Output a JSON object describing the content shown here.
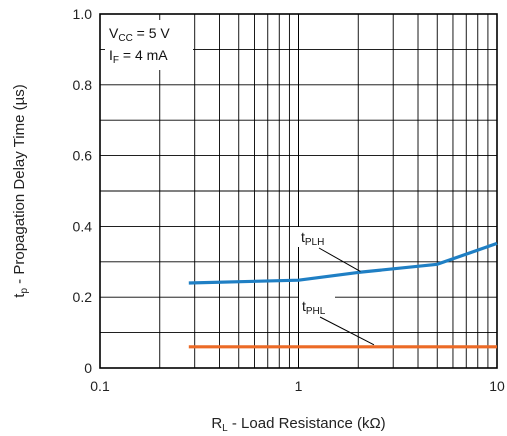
{
  "chart_data": {
    "type": "line",
    "xlabel": {
      "main": "R",
      "sub": "L",
      "rest": " - Load Resistance (kΩ)"
    },
    "ylabel": {
      "main": "t",
      "sub": "p",
      "rest": " - Propagation Delay Time (µs)"
    },
    "xscale": "log",
    "xlim": [
      0.1,
      10
    ],
    "ylim": [
      0,
      1.0
    ],
    "xticks": [
      {
        "value": 0.1,
        "label": "0.1"
      },
      {
        "value": 1,
        "label": "1"
      },
      {
        "value": 10,
        "label": "10"
      }
    ],
    "yticks": [
      {
        "value": 0,
        "label": "0"
      },
      {
        "value": 0.2,
        "label": "0.2"
      },
      {
        "value": 0.4,
        "label": "0.4"
      },
      {
        "value": 0.6,
        "label": "0.6"
      },
      {
        "value": 0.8,
        "label": "0.8"
      },
      {
        "value": 1.0,
        "label": "1.0"
      }
    ],
    "grid": true,
    "conditions": [
      {
        "main": "V",
        "sub": "CC",
        "rest": " = 5 V"
      },
      {
        "main": "I",
        "sub": "F",
        "rest": " = 4 mA"
      }
    ],
    "series": [
      {
        "label_main": "t",
        "label_sub": "PLH",
        "color": "#1f7fc4",
        "x": [
          0.28,
          1.0,
          2.0,
          5.0,
          10.0
        ],
        "y": [
          0.24,
          0.248,
          0.27,
          0.293,
          0.352
        ]
      },
      {
        "label_main": "t",
        "label_sub": "PHL",
        "color": "#ec6a26",
        "x": [
          0.28,
          1.0,
          10.0
        ],
        "y": [
          0.06,
          0.06,
          0.06
        ]
      }
    ]
  }
}
